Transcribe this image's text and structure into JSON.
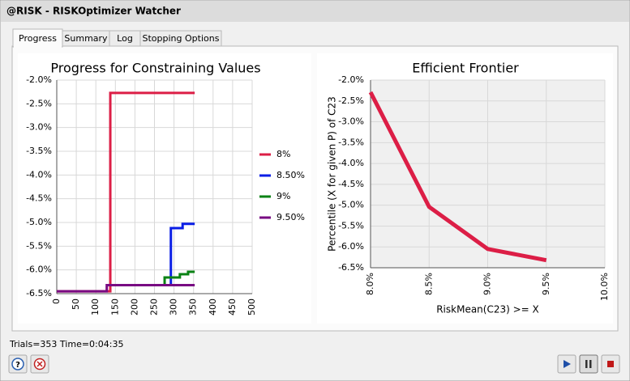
{
  "window": {
    "title": "@RISK - RISKOptimizer Watcher"
  },
  "tabs": [
    {
      "label": "Progress",
      "selected": true
    },
    {
      "label": "Summary"
    },
    {
      "label": "Log"
    },
    {
      "label": "Stopping Options",
      "enabled": false
    }
  ],
  "status": "Trials=353 Time=0:04:35",
  "chart_data": [
    {
      "type": "line",
      "title": "Progress for Constraining Values",
      "xlim": [
        0,
        500
      ],
      "xticks": [
        0,
        50,
        100,
        150,
        200,
        250,
        300,
        350,
        400,
        450,
        500
      ],
      "ylim": [
        -6.5,
        -2
      ],
      "yticks": [
        {
          "value": -2,
          "label": "-2.0%"
        },
        {
          "value": -2.5,
          "label": "-2.5%"
        },
        {
          "value": -3,
          "label": "-3.0%"
        },
        {
          "value": -3.5,
          "label": "-3.5%"
        },
        {
          "value": -4,
          "label": "-4.0%"
        },
        {
          "value": -4.5,
          "label": "-4.5%"
        },
        {
          "value": -5,
          "label": "-5.0%"
        },
        {
          "value": -5.5,
          "label": "-5.5%"
        },
        {
          "value": -6,
          "label": "-6.0%"
        },
        {
          "value": -6.5,
          "label": "-6.5%"
        }
      ],
      "grid": true,
      "legend": "right",
      "series": [
        {
          "name": "8%",
          "color": "#dc1e46",
          "x": [
            0,
            137,
            137,
            353
          ],
          "values": [
            -6.45,
            -6.45,
            -2.27,
            -2.27
          ]
        },
        {
          "name": "8.50%",
          "color": "#0a1ee6",
          "x": [
            292,
            292,
            322,
            322,
            353
          ],
          "values": [
            -6.32,
            -5.12,
            -5.12,
            -5.03,
            -5.03
          ]
        },
        {
          "name": "9%",
          "color": "#0a8214",
          "x": [
            276,
            276,
            315,
            315,
            336,
            336,
            353
          ],
          "values": [
            -6.32,
            -6.16,
            -6.16,
            -6.09,
            -6.09,
            -6.04,
            -6.04
          ]
        },
        {
          "name": "9.50%",
          "color": "#780a82",
          "x": [
            0,
            128,
            128,
            353
          ],
          "values": [
            -6.45,
            -6.45,
            -6.32,
            -6.32
          ]
        }
      ]
    },
    {
      "type": "line",
      "title": "Efficient Frontier",
      "x_label": "RiskMean(C23) >= X",
      "y_label": "Percentile (X for given P) of C23",
      "x": [
        8,
        8.5,
        9,
        9.5
      ],
      "values": [
        -2.29,
        -5.04,
        -6.05,
        -6.32
      ],
      "color": "#dc1e46",
      "xlim": [
        8,
        10
      ],
      "xticks": [
        {
          "value": 8,
          "label": "8.0%"
        },
        {
          "value": 8.5,
          "label": "8.5%"
        },
        {
          "value": 9,
          "label": "9.0%"
        },
        {
          "value": 9.5,
          "label": "9.5%"
        },
        {
          "value": 10,
          "label": "10.0%"
        }
      ],
      "ylim": [
        -6.5,
        -2
      ],
      "yticks": [
        {
          "value": -2,
          "label": "-2.0%"
        },
        {
          "value": -2.5,
          "label": "-2.5%"
        },
        {
          "value": -3,
          "label": "-3.0%"
        },
        {
          "value": -3.5,
          "label": "-3.5%"
        },
        {
          "value": -4,
          "label": "-4.0%"
        },
        {
          "value": -4.5,
          "label": "-4.5%"
        },
        {
          "value": -5,
          "label": "-5.0%"
        },
        {
          "value": -5.5,
          "label": "-5.5%"
        },
        {
          "value": -6,
          "label": "-6.0%"
        },
        {
          "value": -6.5,
          "label": "-6.5%"
        }
      ],
      "grid": true
    }
  ]
}
